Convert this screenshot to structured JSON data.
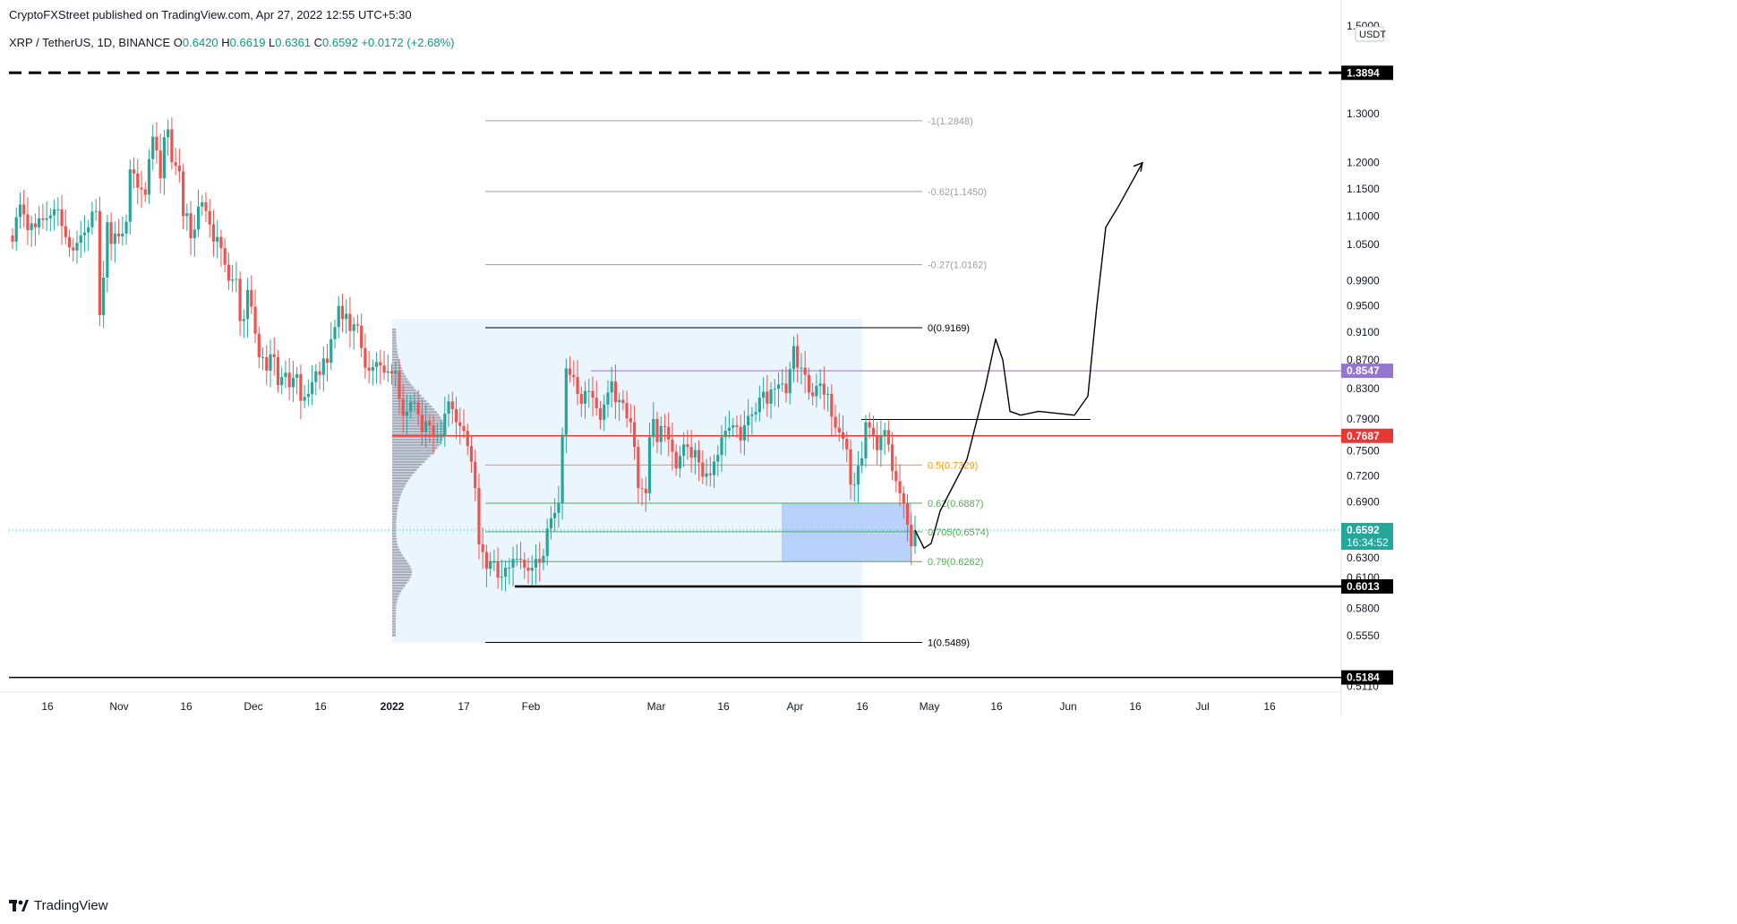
{
  "header": {
    "published": "CryptoFXStreet published on TradingView.com, Apr 27, 2022 12:55 UTC+5:30",
    "symbol": "XRP / TetherUS, 1D, BINANCE",
    "ohlc": [
      {
        "k": "O",
        "v": "0.6420"
      },
      {
        "k": "H",
        "v": "0.6619"
      },
      {
        "k": "L",
        "v": "0.6361"
      },
      {
        "k": "C",
        "v": "0.6592"
      }
    ],
    "change": "+0.0172 (+2.68%)"
  },
  "footer": {
    "brand": "TradingView"
  },
  "chart_data": {
    "type": "candlestick",
    "currency": "USDT",
    "scale": "log",
    "ylim": [
      0.511,
      1.5
    ],
    "y_ticks": [
      "0.5110",
      "0.5550",
      "0.5800",
      "0.6100",
      "0.6300",
      "0.6600",
      "0.6900",
      "0.7200",
      "0.7500",
      "0.7900",
      "0.8300",
      "0.8700",
      "0.9100",
      "0.9500",
      "0.9900",
      "1.0500",
      "1.1000",
      "1.1500",
      "1.2000",
      "1.3000",
      "1.5000"
    ],
    "x_ticks": [
      {
        "label": "16",
        "date": "2021-10-16"
      },
      {
        "label": "Nov",
        "date": "2021-11-01"
      },
      {
        "label": "16",
        "date": "2021-11-16"
      },
      {
        "label": "Dec",
        "date": "2021-12-01"
      },
      {
        "label": "16",
        "date": "2021-12-16"
      },
      {
        "label": "2022",
        "date": "2022-01-01"
      },
      {
        "label": "17",
        "date": "2022-01-17"
      },
      {
        "label": "Feb",
        "date": "2022-02-01"
      },
      {
        "label": "Mar",
        "date": "2022-03-01"
      },
      {
        "label": "16",
        "date": "2022-03-16"
      },
      {
        "label": "Apr",
        "date": "2022-04-01"
      },
      {
        "label": "16",
        "date": "2022-04-16"
      },
      {
        "label": "May",
        "date": "2022-05-01"
      },
      {
        "label": "16",
        "date": "2022-05-16"
      },
      {
        "label": "Jun",
        "date": "2022-06-01"
      },
      {
        "label": "16",
        "date": "2022-06-16"
      },
      {
        "label": "Jul",
        "date": "2022-07-01"
      },
      {
        "label": "16",
        "date": "2022-07-16"
      }
    ],
    "candles_close": [
      1.055,
      1.098,
      1.121,
      1.103,
      1.075,
      1.087,
      1.08,
      1.096,
      1.093,
      1.096,
      1.101,
      1.112,
      1.112,
      1.082,
      1.063,
      1.045,
      1.04,
      1.053,
      1.066,
      1.071,
      1.08,
      1.108,
      1.109,
      0.936,
      0.995,
      1.089,
      1.051,
      1.069,
      1.064,
      1.069,
      1.09,
      1.187,
      1.179,
      1.152,
      1.149,
      1.139,
      1.207,
      1.252,
      1.224,
      1.17,
      1.251,
      1.267,
      1.201,
      1.194,
      1.183,
      1.1,
      1.105,
      1.061,
      1.076,
      1.117,
      1.125,
      1.109,
      1.085,
      1.055,
      1.063,
      1.044,
      1.016,
      0.99,
      0.992,
      0.993,
      0.927,
      0.93,
      0.975,
      0.949,
      0.908,
      0.874,
      0.874,
      0.855,
      0.878,
      0.874,
      0.835,
      0.846,
      0.852,
      0.832,
      0.845,
      0.85,
      0.814,
      0.819,
      0.823,
      0.839,
      0.854,
      0.849,
      0.872,
      0.866,
      0.9,
      0.918,
      0.95,
      0.93,
      0.938,
      0.912,
      0.922,
      0.92,
      0.887,
      0.859,
      0.855,
      0.86,
      0.867,
      0.862,
      0.852,
      0.854,
      0.851,
      0.854,
      0.816,
      0.794,
      0.8,
      0.812,
      0.812,
      0.796,
      0.773,
      0.787,
      0.782,
      0.769,
      0.769,
      0.769,
      0.797,
      0.813,
      0.803,
      0.786,
      0.781,
      0.775,
      0.756,
      0.737,
      0.706,
      0.644,
      0.636,
      0.619,
      0.626,
      0.626,
      0.61,
      0.611,
      0.62,
      0.62,
      0.629,
      0.629,
      0.628,
      0.62,
      0.617,
      0.62,
      0.629,
      0.625,
      0.632,
      0.661,
      0.672,
      0.678,
      0.689,
      0.77,
      0.858,
      0.849,
      0.846,
      0.823,
      0.81,
      0.827,
      0.827,
      0.818,
      0.804,
      0.789,
      0.809,
      0.825,
      0.84,
      0.812,
      0.815,
      0.811,
      0.791,
      0.786,
      0.755,
      0.706,
      0.705,
      0.7,
      0.767,
      0.79,
      0.761,
      0.781,
      0.78,
      0.764,
      0.749,
      0.729,
      0.744,
      0.758,
      0.755,
      0.742,
      0.751,
      0.736,
      0.719,
      0.723,
      0.721,
      0.737,
      0.745,
      0.767,
      0.775,
      0.779,
      0.782,
      0.78,
      0.763,
      0.782,
      0.794,
      0.796,
      0.799,
      0.818,
      0.826,
      0.81,
      0.829,
      0.83,
      0.836,
      0.837,
      0.824,
      0.857,
      0.89,
      0.859,
      0.859,
      0.849,
      0.825,
      0.82,
      0.834,
      0.837,
      0.822,
      0.823,
      0.793,
      0.779,
      0.773,
      0.765,
      0.752,
      0.71,
      0.71,
      0.732,
      0.741,
      0.786,
      0.779,
      0.768,
      0.751,
      0.768,
      0.776,
      0.758,
      0.726,
      0.714,
      0.7,
      0.688,
      0.665,
      0.642,
      0.659
    ],
    "overlays": {
      "price_labels": [
        {
          "value": 1.3894,
          "text": "1.3894",
          "style": "dashed",
          "color": "#000000"
        },
        {
          "value": 0.8547,
          "text": "0.8547",
          "color": "#9575cd"
        },
        {
          "value": 0.7687,
          "text": "0.7687",
          "color": "#e53935"
        },
        {
          "value": 0.6592,
          "text": "0.6592",
          "countdown": "16:34:52",
          "color": "#26a69a"
        },
        {
          "value": 0.6013,
          "text": "0.6013",
          "color": "#000000"
        },
        {
          "value": 0.5184,
          "text": "0.5184",
          "color": "#000000"
        }
      ],
      "fib_levels": [
        {
          "value": 1.2848,
          "text": "-1(1.2848)",
          "color": "#9e9e9e"
        },
        {
          "value": 1.145,
          "text": "-0.62(1.1450)",
          "color": "#9e9e9e"
        },
        {
          "value": 1.0162,
          "text": "-0.27(1.0162)",
          "color": "#9e9e9e"
        },
        {
          "value": 0.9169,
          "text": "0(0.9169)",
          "color": "#000000"
        },
        {
          "value": 0.7329,
          "text": "0.5(0.7329)",
          "color": "#ff9800"
        },
        {
          "value": 0.6887,
          "text": "0.62(0.6887)",
          "color": "#4caf50"
        },
        {
          "value": 0.6574,
          "text": "0.705(0.6574)",
          "color": "#4caf50"
        },
        {
          "value": 0.6262,
          "text": "0.79(0.6262)",
          "color": "#4caf50"
        },
        {
          "value": 0.5489,
          "text": "1(0.5489)",
          "color": "#000000"
        }
      ],
      "ranges": [
        {
          "from": "2022-01-01",
          "to": "2022-04-16",
          "low": 0.5489,
          "high": 0.93,
          "color": "#e3f2fd"
        },
        {
          "from": "2022-03-29",
          "to": "2022-04-27",
          "low": 0.6262,
          "high": 0.6887,
          "color": "#b3cdfb"
        }
      ],
      "projection": {
        "from": "2022-04-27",
        "to": "2022-06-16",
        "target": 1.2
      },
      "volume_profile": true
    },
    "colors": {
      "up": "#26a69a",
      "down": "#ef5350"
    }
  }
}
